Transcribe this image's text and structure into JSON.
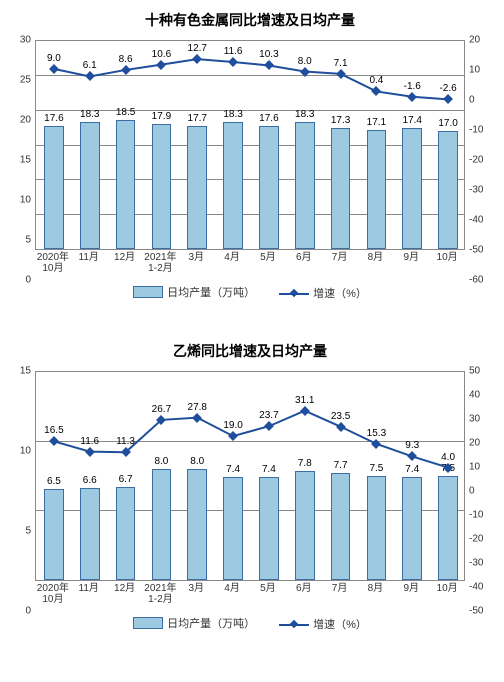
{
  "charts": [
    {
      "title": "十种有色金属同比增速及日均产量",
      "categories": [
        "2020年\n10月",
        "11月",
        "12月",
        "2021年\n1-2月",
        "3月",
        "4月",
        "5月",
        "6月",
        "7月",
        "8月",
        "9月",
        "10月"
      ],
      "bar_values": [
        17.6,
        18.3,
        18.5,
        17.9,
        17.7,
        18.3,
        17.6,
        18.3,
        17.3,
        17.1,
        17.4,
        17.0
      ],
      "line_values": [
        9.0,
        6.1,
        8.6,
        10.6,
        12.7,
        11.6,
        10.3,
        8.0,
        7.1,
        0.4,
        -1.6,
        -2.6
      ],
      "left_axis": {
        "min": 0,
        "max": 30,
        "step": 5
      },
      "right_axis": {
        "min": -60,
        "max": 20,
        "step": 10
      },
      "bar_color": "#9ecae1",
      "bar_border": "#3a6ea5",
      "line_color": "#1f4e9c",
      "bar_width": 0.55,
      "legend_bar": "日均产量（万吨）",
      "legend_line": "增速（%）"
    },
    {
      "title": "乙烯同比增速及日均产量",
      "categories": [
        "2020年\n10月",
        "11月",
        "12月",
        "2021年\n1-2月",
        "3月",
        "4月",
        "5月",
        "6月",
        "7月",
        "8月",
        "9月",
        "10月"
      ],
      "bar_values": [
        6.5,
        6.6,
        6.7,
        8.0,
        8.0,
        7.4,
        7.4,
        7.8,
        7.7,
        7.5,
        7.4,
        7.5
      ],
      "line_values": [
        16.5,
        11.6,
        11.3,
        26.7,
        27.8,
        19.0,
        23.7,
        31.1,
        23.5,
        15.3,
        9.3,
        4.0
      ],
      "left_axis": {
        "min": 0,
        "max": 15,
        "step": 5
      },
      "right_axis": {
        "min": -50,
        "max": 50,
        "step": 10
      },
      "bar_color": "#9ecae1",
      "bar_border": "#3a6ea5",
      "line_color": "#1f4e9c",
      "bar_width": 0.55,
      "legend_bar": "日均产量（万吨）",
      "legend_line": "增速（%）"
    }
  ]
}
